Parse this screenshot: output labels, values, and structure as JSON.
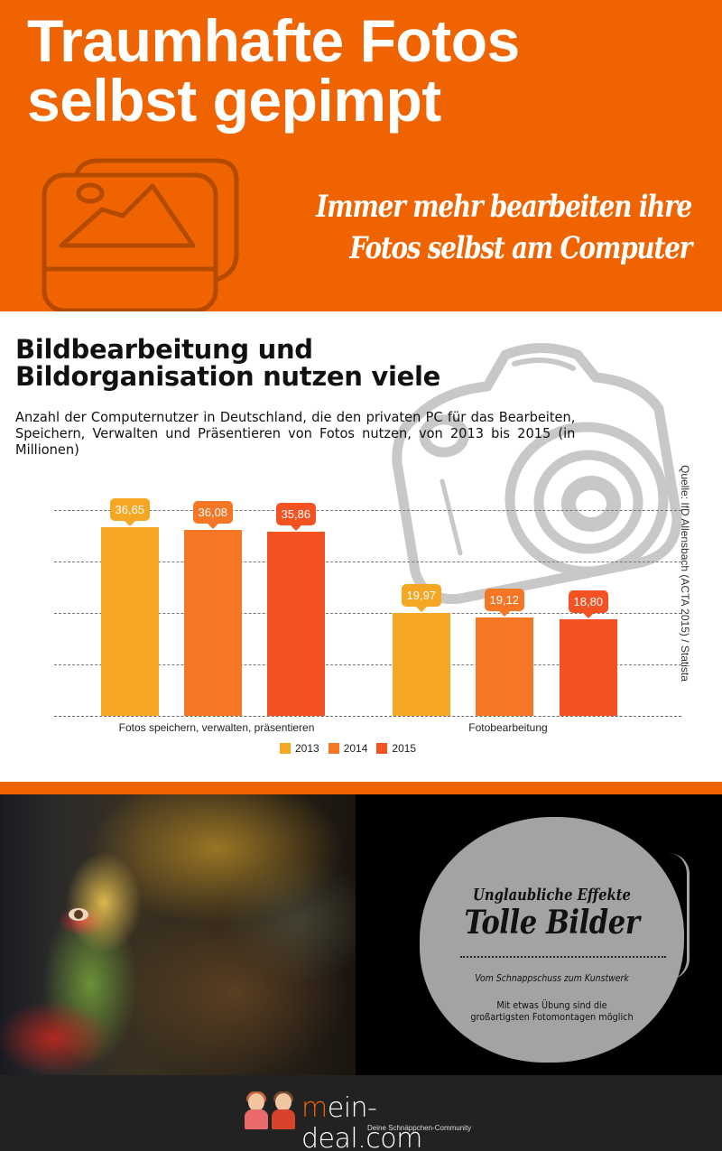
{
  "header": {
    "title_line1": "Traumhafte Fotos",
    "title_line2": "selbst gepimpt",
    "subtitle_line1": "Immer mehr bearbeiten ihre",
    "subtitle_line2": "Fotos selbst am Computer",
    "icon": "image-gallery-icon",
    "background": "#ef6400"
  },
  "chart_section": {
    "title_line1": "Bildbearbeitung und",
    "title_line2": "Bildorganisation nutzen viele",
    "description": "Anzahl der Computernutzer in Deutschland, die den privaten PC für das Bearbeiten, Speichern, Verwalten und Präsentieren von Fotos nutzen, von 2013 bis 2015 (in Millionen)",
    "source": "Quelle: IfD Allensbach (ACTA 2015) / Statista",
    "decoration": "camera-sketch-icon"
  },
  "chart_data": {
    "type": "bar",
    "title": "Bildbearbeitung und Bildorganisation nutzen viele",
    "subtitle": "Anzahl der Computernutzer in Deutschland, die den privaten PC für das Bearbeiten, Speichern, Verwalten und Präsentieren von Fotos nutzen, von 2013 bis 2015 (in Millionen)",
    "categories": [
      "Fotos speichern, verwalten, präsentieren",
      "Fotobearbeitung"
    ],
    "series": [
      {
        "name": "2013",
        "color": "#f5a623",
        "values": [
          36.65,
          19.97
        ],
        "labels": [
          "36,65",
          "19,97"
        ]
      },
      {
        "name": "2014",
        "color": "#f57624",
        "values": [
          36.08,
          19.12
        ],
        "labels": [
          "36,08",
          "19,12"
        ]
      },
      {
        "name": "2015",
        "color": "#f55223",
        "values": [
          35.86,
          18.8
        ],
        "labels": [
          "35,86",
          "18,80"
        ]
      }
    ],
    "xlabel": "",
    "ylabel": "Millionen",
    "ylim": [
      0,
      40
    ],
    "gridlines": [
      0,
      10,
      20,
      30,
      40
    ],
    "grid": true,
    "y_tick_labels_visible": false,
    "legend_position": "bottom",
    "source": "Quelle: IfD Allensbach (ACTA 2015) / Statista"
  },
  "photo_section": {
    "image": "digital-art-portrait-dispersion",
    "badge": {
      "kicker": "Unglaubliche Effekte",
      "title": "Tolle Bilder",
      "subtitle": "Vom Schnappschuss zum Kunstwerk",
      "text": "Mit etwas Übung sind die großartigsten Fotomontagen möglich"
    }
  },
  "footer": {
    "logo_m": "m",
    "logo_rest": "ein-deal.com",
    "tagline": "Deine Schnäppchen-Community",
    "accent": "#ef6400"
  }
}
